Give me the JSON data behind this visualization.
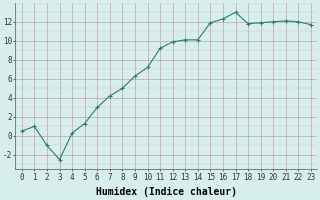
{
  "x": [
    0,
    1,
    2,
    3,
    4,
    5,
    6,
    7,
    8,
    9,
    10,
    11,
    12,
    13,
    14,
    15,
    16,
    17,
    18,
    19,
    20,
    21,
    22,
    23
  ],
  "y": [
    0.5,
    1.0,
    -1.0,
    -2.5,
    0.3,
    1.3,
    3.0,
    4.2,
    5.0,
    6.3,
    7.2,
    9.2,
    9.9,
    10.1,
    10.1,
    11.9,
    12.3,
    13.0,
    11.8,
    11.9,
    12.0,
    12.1,
    12.0,
    11.7
  ],
  "line_color": "#2e7d6e",
  "marker": "+",
  "marker_size": 3,
  "line_width": 0.8,
  "bg_color": "#d6efec",
  "grid_color_major": "#c8a0a0",
  "grid_color_minor": "#ddc0c0",
  "xlabel": "Humidex (Indice chaleur)",
  "xlim": [
    -0.5,
    23.5
  ],
  "ylim": [
    -3.5,
    14.0
  ],
  "xticks": [
    0,
    1,
    2,
    3,
    4,
    5,
    6,
    7,
    8,
    9,
    10,
    11,
    12,
    13,
    14,
    15,
    16,
    17,
    18,
    19,
    20,
    21,
    22,
    23
  ],
  "yticks": [
    -2,
    0,
    2,
    4,
    6,
    8,
    10,
    12
  ],
  "xlabel_fontsize": 7,
  "tick_fontsize": 5.5
}
